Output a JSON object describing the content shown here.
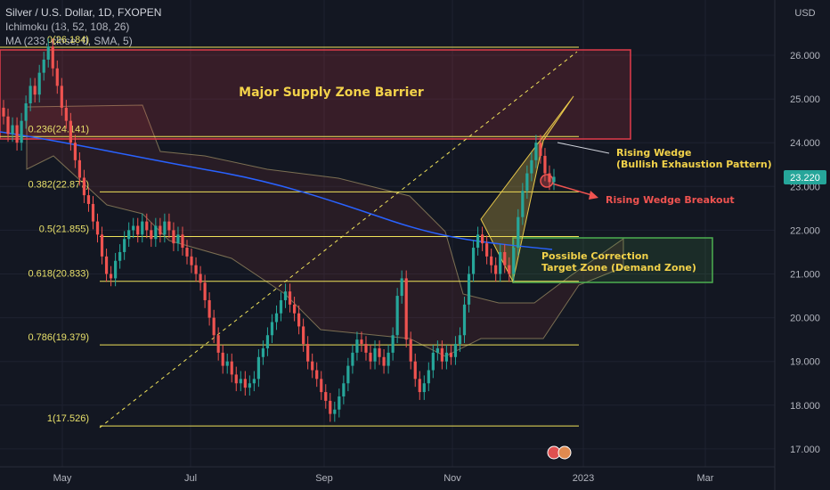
{
  "legend": {
    "title": "Silver / U.S. Dollar, 1D, FXOPEN",
    "ichimoku": "Ichimoku (18, 52, 108, 26)",
    "ma": "MA (233, close, 0, SMA, 5)"
  },
  "currency": "USD",
  "colors": {
    "background": "#131722",
    "up": "#26a69a",
    "down": "#ef5350",
    "fib_line": "#f0e35a",
    "supply_zone": "#e03c4a",
    "demand_zone": "#4caf50",
    "wedge": "#e8c84a",
    "ma": "#2962ff",
    "price_tag": "#26a69a"
  },
  "chart_data": {
    "type": "candlestick",
    "y_axis": {
      "ticks": [
        "26.000",
        "25.000",
        "24.000",
        "23.000",
        "22.000",
        "21.000",
        "20.000",
        "19.000",
        "18.000",
        "17.000"
      ],
      "values": [
        26,
        25,
        24,
        23,
        22,
        21,
        20,
        19,
        18,
        17
      ],
      "range": [
        16.8,
        27.0
      ]
    },
    "x_axis": {
      "ticks": [
        "May",
        "Jul",
        "Sep",
        "Nov",
        "2023",
        "Mar"
      ]
    },
    "last_price": "23.220",
    "fib_levels": [
      {
        "label": "0(26.184)",
        "value": 26.184
      },
      {
        "label": "0.236(24.141)",
        "value": 24.141
      },
      {
        "label": "0.382(22.877)",
        "value": 22.877
      },
      {
        "label": "0.5(21.855)",
        "value": 21.855
      },
      {
        "label": "0.618(20.833)",
        "value": 20.833
      },
      {
        "label": "0.786(19.379)",
        "value": 19.379
      },
      {
        "label": "1(17.526)",
        "value": 17.526
      }
    ],
    "annotations": {
      "supply_zone": "Major Supply Zone Barrier",
      "wedge_title": "Rising Wedge",
      "wedge_sub": "(Bullish Exhaustion Pattern)",
      "breakout": "Rising Wedge Breakout",
      "correction_1": "Possible Correction",
      "correction_2": "Target Zone (Demand Zone)"
    },
    "closes": [
      24.6,
      24.2,
      24.4,
      24.0,
      24.5,
      24.9,
      25.3,
      25.1,
      25.6,
      25.9,
      26.2,
      25.7,
      25.3,
      24.8,
      24.5,
      24.0,
      23.6,
      23.2,
      22.8,
      22.6,
      22.2,
      21.9,
      21.4,
      21.0,
      20.9,
      21.3,
      21.5,
      21.8,
      22.0,
      22.1,
      21.9,
      22.2,
      22.0,
      21.8,
      22.1,
      21.9,
      22.2,
      22.0,
      21.7,
      21.9,
      21.6,
      21.4,
      21.2,
      21.0,
      20.8,
      20.4,
      20.0,
      19.6,
      19.2,
      18.9,
      19.0,
      18.7,
      18.5,
      18.6,
      18.4,
      18.5,
      18.6,
      19.1,
      19.3,
      19.6,
      19.9,
      20.1,
      20.4,
      20.6,
      20.3,
      20.1,
      19.8,
      19.4,
      19.0,
      18.8,
      18.6,
      18.3,
      18.1,
      17.8,
      17.9,
      18.2,
      18.5,
      18.9,
      19.2,
      19.5,
      19.4,
      19.2,
      19.0,
      19.3,
      19.1,
      18.9,
      19.2,
      19.6,
      20.5,
      20.9,
      19.5,
      19.0,
      18.6,
      18.3,
      18.5,
      18.8,
      19.2,
      19.3,
      19.0,
      19.2,
      19.1,
      19.4,
      19.6,
      20.3,
      21.0,
      21.6,
      21.9,
      21.7,
      21.4,
      21.2,
      21.0,
      21.5,
      21.2,
      21.0,
      21.6,
      22.3,
      22.9,
      23.3,
      23.6,
      24.0,
      23.7,
      23.3,
      23.1,
      23.22
    ]
  }
}
